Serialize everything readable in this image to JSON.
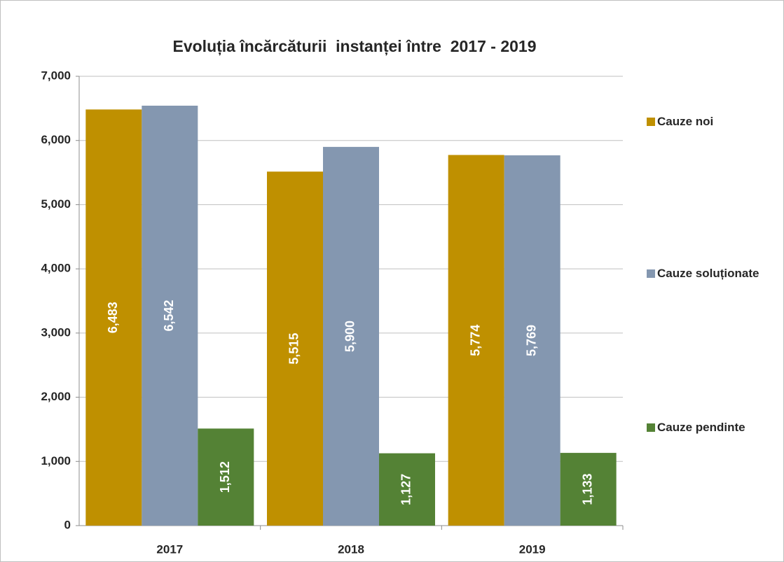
{
  "chart_data": {
    "type": "bar",
    "title": "Evoluția încărcăturii  instanței între  2017 - 2019",
    "categories": [
      "2017",
      "2018",
      "2019"
    ],
    "series": [
      {
        "name": "Cauze noi",
        "color": "#bf9000",
        "values": [
          6483,
          5515,
          5774
        ],
        "value_labels": [
          "6,483",
          "5,515",
          "5,774"
        ]
      },
      {
        "name": "Cauze soluționate",
        "color": "#8497b0",
        "values": [
          6542,
          5900,
          5769
        ],
        "value_labels": [
          "6,542",
          "5,900",
          "5,769"
        ]
      },
      {
        "name": "Cauze pendinte",
        "color": "#548235",
        "values": [
          1512,
          1127,
          1133
        ],
        "value_labels": [
          "1,512",
          "1,127",
          "1,133"
        ]
      }
    ],
    "ylim": [
      0,
      7000
    ],
    "yticks": [
      0,
      {
        "value": 1000,
        "label": "1,000"
      },
      {
        "value": 2000,
        "label": "2,000"
      },
      {
        "value": 3000,
        "label": "3,000"
      },
      {
        "value": 4000,
        "label": "4,000"
      },
      {
        "value": 5000,
        "label": "5,000"
      },
      {
        "value": 6000,
        "label": "6,000"
      },
      {
        "value": 7000,
        "label": "7,000"
      }
    ],
    "grid": true,
    "legend": "right"
  }
}
